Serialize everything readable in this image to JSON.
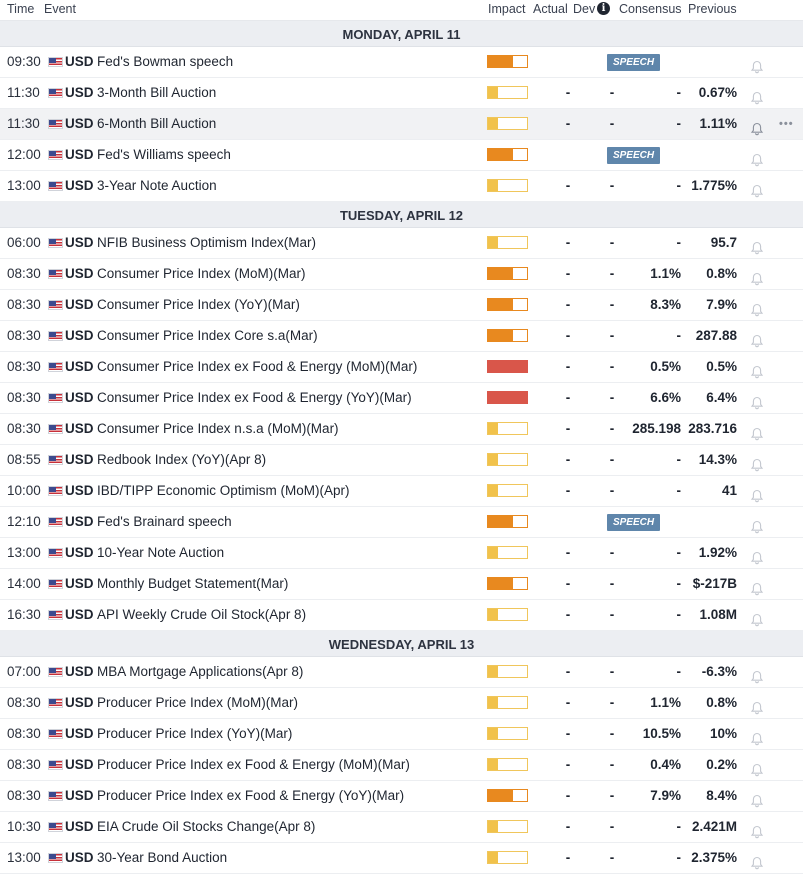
{
  "header": {
    "time": "Time",
    "event": "Event",
    "impact": "Impact",
    "actual": "Actual",
    "dev": "Dev",
    "consensus": "Consensus",
    "previous": "Previous"
  },
  "colors": {
    "impact_low": "#f1c24b",
    "impact_medium": "#e8891f",
    "impact_high": "#d9564a",
    "speech_badge": "#5f86ab"
  },
  "icons": {
    "info": "info-circle-icon",
    "bell": "bell-icon",
    "flag": "us-flag-icon",
    "more": "more-dots-icon"
  },
  "days": [
    {
      "label": "MONDAY, APRIL 11",
      "events": [
        {
          "time": "09:30",
          "currency": "USD",
          "event": "Fed's Bowman speech",
          "impact": "medium",
          "speech": "SPEECH"
        },
        {
          "time": "11:30",
          "currency": "USD",
          "event": "3-Month Bill Auction",
          "impact": "low",
          "actual": "-",
          "dev": "-",
          "consensus": "-",
          "previous": "0.67%"
        },
        {
          "time": "11:30",
          "currency": "USD",
          "event": "6-Month Bill Auction",
          "impact": "low",
          "actual": "-",
          "dev": "-",
          "consensus": "-",
          "previous": "1.11%",
          "highlighted": true
        },
        {
          "time": "12:00",
          "currency": "USD",
          "event": "Fed's Williams speech",
          "impact": "medium",
          "speech": "SPEECH"
        },
        {
          "time": "13:00",
          "currency": "USD",
          "event": "3-Year Note Auction",
          "impact": "low",
          "actual": "-",
          "dev": "-",
          "consensus": "-",
          "previous": "1.775%"
        }
      ]
    },
    {
      "label": "TUESDAY, APRIL 12",
      "events": [
        {
          "time": "06:00",
          "currency": "USD",
          "event": "NFIB Business Optimism Index(Mar)",
          "impact": "low",
          "actual": "-",
          "dev": "-",
          "consensus": "-",
          "previous": "95.7"
        },
        {
          "time": "08:30",
          "currency": "USD",
          "event": "Consumer Price Index (MoM)(Mar)",
          "impact": "medium",
          "actual": "-",
          "dev": "-",
          "consensus": "1.1%",
          "previous": "0.8%"
        },
        {
          "time": "08:30",
          "currency": "USD",
          "event": "Consumer Price Index (YoY)(Mar)",
          "impact": "medium",
          "actual": "-",
          "dev": "-",
          "consensus": "8.3%",
          "previous": "7.9%"
        },
        {
          "time": "08:30",
          "currency": "USD",
          "event": "Consumer Price Index Core s.a(Mar)",
          "impact": "medium",
          "actual": "-",
          "dev": "-",
          "consensus": "-",
          "previous": "287.88"
        },
        {
          "time": "08:30",
          "currency": "USD",
          "event": "Consumer Price Index ex Food & Energy (MoM)(Mar)",
          "impact": "high",
          "actual": "-",
          "dev": "-",
          "consensus": "0.5%",
          "previous": "0.5%"
        },
        {
          "time": "08:30",
          "currency": "USD",
          "event": "Consumer Price Index ex Food & Energy (YoY)(Mar)",
          "impact": "high",
          "actual": "-",
          "dev": "-",
          "consensus": "6.6%",
          "previous": "6.4%"
        },
        {
          "time": "08:30",
          "currency": "USD",
          "event": "Consumer Price Index n.s.a (MoM)(Mar)",
          "impact": "low",
          "actual": "-",
          "dev": "-",
          "consensus": "285.198",
          "previous": "283.716"
        },
        {
          "time": "08:55",
          "currency": "USD",
          "event": "Redbook Index (YoY)(Apr 8)",
          "impact": "low",
          "actual": "-",
          "dev": "-",
          "consensus": "-",
          "previous": "14.3%"
        },
        {
          "time": "10:00",
          "currency": "USD",
          "event": "IBD/TIPP Economic Optimism (MoM)(Apr)",
          "impact": "low",
          "actual": "-",
          "dev": "-",
          "consensus": "-",
          "previous": "41"
        },
        {
          "time": "12:10",
          "currency": "USD",
          "event": "Fed's Brainard speech",
          "impact": "medium",
          "speech": "SPEECH"
        },
        {
          "time": "13:00",
          "currency": "USD",
          "event": "10-Year Note Auction",
          "impact": "low",
          "actual": "-",
          "dev": "-",
          "consensus": "-",
          "previous": "1.92%"
        },
        {
          "time": "14:00",
          "currency": "USD",
          "event": "Monthly Budget Statement(Mar)",
          "impact": "medium",
          "actual": "-",
          "dev": "-",
          "consensus": "-",
          "previous": "$-217B"
        },
        {
          "time": "16:30",
          "currency": "USD",
          "event": "API Weekly Crude Oil Stock(Apr 8)",
          "impact": "low",
          "actual": "-",
          "dev": "-",
          "consensus": "-",
          "previous": "1.08M"
        }
      ]
    },
    {
      "label": "WEDNESDAY, APRIL 13",
      "events": [
        {
          "time": "07:00",
          "currency": "USD",
          "event": "MBA Mortgage Applications(Apr 8)",
          "impact": "low",
          "actual": "-",
          "dev": "-",
          "consensus": "-",
          "previous": "-6.3%"
        },
        {
          "time": "08:30",
          "currency": "USD",
          "event": "Producer Price Index (MoM)(Mar)",
          "impact": "low",
          "actual": "-",
          "dev": "-",
          "consensus": "1.1%",
          "previous": "0.8%"
        },
        {
          "time": "08:30",
          "currency": "USD",
          "event": "Producer Price Index (YoY)(Mar)",
          "impact": "low",
          "actual": "-",
          "dev": "-",
          "consensus": "10.5%",
          "previous": "10%"
        },
        {
          "time": "08:30",
          "currency": "USD",
          "event": "Producer Price Index ex Food & Energy (MoM)(Mar)",
          "impact": "low",
          "actual": "-",
          "dev": "-",
          "consensus": "0.4%",
          "previous": "0.2%"
        },
        {
          "time": "08:30",
          "currency": "USD",
          "event": "Producer Price Index ex Food & Energy (YoY)(Mar)",
          "impact": "medium",
          "actual": "-",
          "dev": "-",
          "consensus": "7.9%",
          "previous": "8.4%"
        },
        {
          "time": "10:30",
          "currency": "USD",
          "event": "EIA Crude Oil Stocks Change(Apr 8)",
          "impact": "low",
          "actual": "-",
          "dev": "-",
          "consensus": "-",
          "previous": "2.421M"
        },
        {
          "time": "13:00",
          "currency": "USD",
          "event": "30-Year Bond Auction",
          "impact": "low",
          "actual": "-",
          "dev": "-",
          "consensus": "-",
          "previous": "2.375%"
        }
      ]
    }
  ]
}
